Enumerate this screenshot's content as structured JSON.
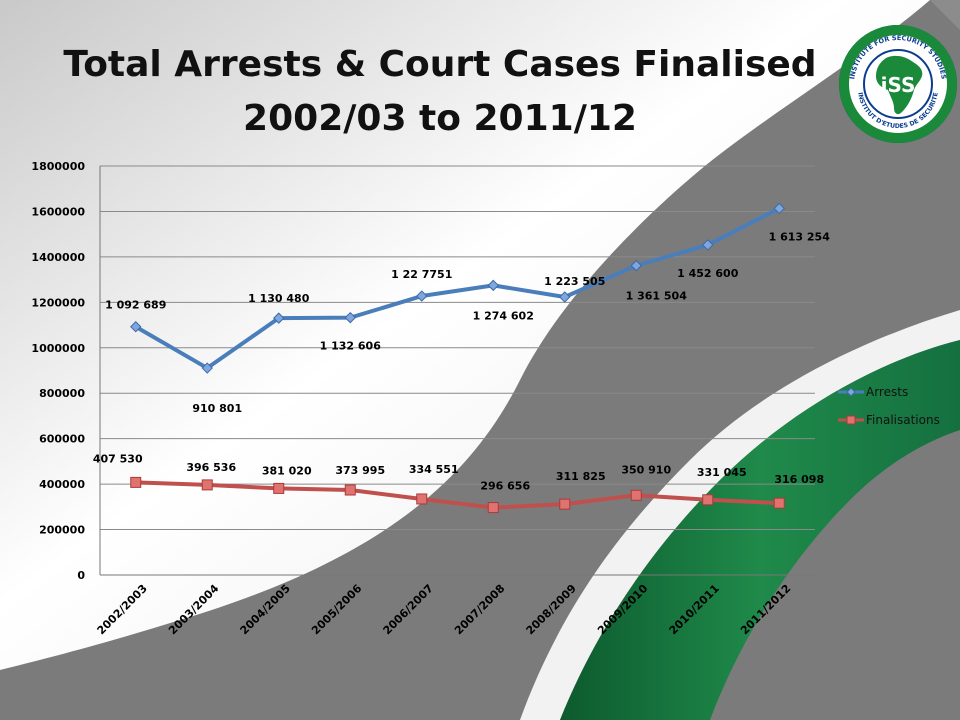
{
  "slide": {
    "title_line1": "Total Arrests & Court Cases Finalised",
    "title_line2": "2002/03 to 2011/12",
    "logo": {
      "top_text": "INSTITUTE FOR SECURITY STUDIES",
      "bottom_text": "INSTITUT D'ETUDES DE SECURITE",
      "center_text": "iSS",
      "colors": {
        "ring": "#0a3d8f",
        "africa": "#1a8a3a"
      }
    },
    "colors": {
      "accent_green": "#1f7a45",
      "background_grey": "#7b7b7b"
    }
  },
  "chart_data": {
    "type": "line",
    "categories": [
      "2002/2003",
      "2003/2004",
      "2004/2005",
      "2005/2006",
      "2006/2007",
      "2007/2008",
      "2008/2009",
      "2009/2010",
      "2010/2011",
      "2011/2012"
    ],
    "series": [
      {
        "name": "Arrests",
        "color": "#4a7ebb",
        "values": [
          1092689,
          910801,
          1130480,
          1132606,
          1227751,
          1274602,
          1223505,
          1361504,
          1452600,
          1613254
        ],
        "labels": [
          "1 092 689",
          "910 801",
          "1 130 480",
          "1 132 606",
          "1 22 7751",
          "1 274 602",
          "1 223 505",
          "1 361 504",
          "1 452 600",
          "1 613 254"
        ]
      },
      {
        "name": "Finalisations",
        "color": "#c0504d",
        "values": [
          407530,
          396536,
          381020,
          373995,
          334551,
          296656,
          311825,
          350910,
          331045,
          316098
        ],
        "labels": [
          "407 530",
          "396 536",
          "381 020",
          "373  995",
          "334 551",
          "296 656",
          "311 825",
          "350 910",
          "331 045",
          "316 098"
        ]
      }
    ],
    "y_ticks": [
      "0",
      "200000",
      "400000",
      "600000",
      "800000",
      "1000000",
      "1200000",
      "1400000",
      "1600000",
      "1800000"
    ],
    "ylim": [
      0,
      1800000
    ],
    "grid": true,
    "legend": "right",
    "xlabel": "",
    "ylabel": ""
  }
}
